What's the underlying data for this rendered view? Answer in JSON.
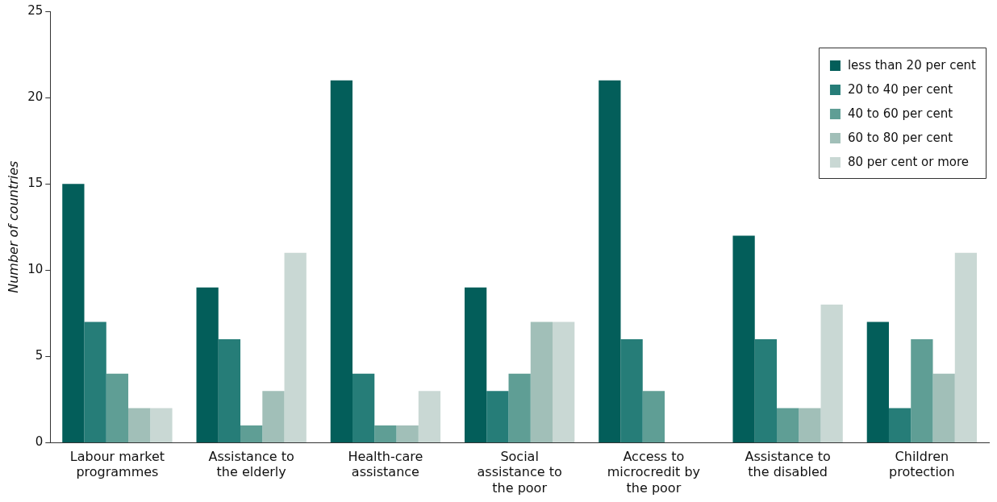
{
  "chart_data": {
    "type": "bar",
    "ylabel": "Number of countries",
    "categories": [
      "Labour market programmes",
      "Assistance to the elderly",
      "Health-care assistance",
      "Social assistance to the poor",
      "Access to microcredit by the poor",
      "Assistance to the disabled",
      "Children protection"
    ],
    "series": [
      {
        "name": "less than 20 per cent",
        "color": "#035e5a",
        "values": [
          15,
          9,
          21,
          9,
          21,
          12,
          7
        ]
      },
      {
        "name": "20 to 40 per cent",
        "color": "#267d78",
        "values": [
          7,
          6,
          4,
          3,
          6,
          6,
          2
        ]
      },
      {
        "name": "40 to 60 per cent",
        "color": "#5f9e95",
        "values": [
          4,
          1,
          1,
          4,
          3,
          2,
          6
        ]
      },
      {
        "name": "60 to 80 per cent",
        "color": "#a1bfb8",
        "values": [
          2,
          3,
          1,
          7,
          0,
          2,
          4
        ]
      },
      {
        "name": "80 per cent or more",
        "color": "#c9d8d4",
        "values": [
          2,
          11,
          3,
          7,
          0,
          8,
          11
        ]
      }
    ],
    "ylim": [
      0,
      25
    ],
    "yticks": [
      0,
      5,
      10,
      15,
      20,
      25
    ],
    "grid": false,
    "legend": "top right"
  }
}
